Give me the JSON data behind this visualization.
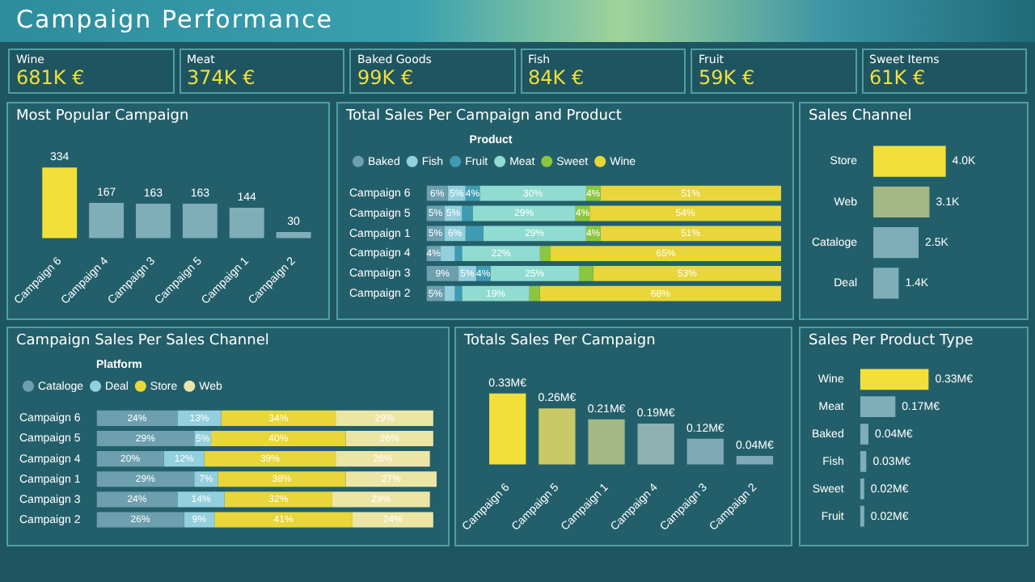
{
  "chart_data": [
    {
      "type": "other",
      "title": "Campaign Performance",
      "annotations": [
        "Wine",
        "681K €",
        "Meat",
        "374K €",
        "Baked Goods",
        "99K €",
        "Fish",
        "84K €",
        "Fruit",
        "59K €",
        "Sweet Items",
        "61K €"
      ]
    },
    {
      "type": "bar",
      "title": "Most Popular Campaign",
      "categories": [
        "Campaign 6",
        "Campaign 4",
        "Campaign 3",
        "Campaign 5",
        "Campaign 1",
        "Campaign 2"
      ],
      "values": [
        334,
        167,
        163,
        163,
        144,
        30
      ],
      "colors": [
        "#f2df3a",
        "#7fadb8",
        "#7fadb8",
        "#7fadb8",
        "#7fadb8",
        "#7fadb8"
      ],
      "data_labels": true,
      "tick_labels": "x",
      "grid": false
    },
    {
      "type": "bar",
      "title": "Total Sales Per Campaign and Product",
      "orientation": "horizontal",
      "stacked": true,
      "legend": "top left",
      "legend_title": "Product",
      "categories": [
        "Campaign 6",
        "Campaign 5",
        "Campaign 1",
        "Campaign 4",
        "Campaign 3",
        "Campaign 2"
      ],
      "xlim": [
        0,
        100
      ],
      "tick_labels": "y",
      "grid": false,
      "series": [
        {
          "name": "Baked",
          "color": "#6d9fae",
          "values": [
            6,
            5,
            5,
            4,
            9,
            5
          ],
          "value_labels": [
            "6%",
            "5%",
            "5%",
            "4%",
            "9%",
            "5%"
          ]
        },
        {
          "name": "Fish",
          "color": "#93cfdc",
          "values": [
            5,
            5,
            6,
            4,
            5,
            3
          ],
          "value_labels": [
            "5%",
            "5%",
            "6%",
            null,
            "5%",
            null
          ]
        },
        {
          "name": "Fruit",
          "color": "#3f9bb2",
          "values": [
            4,
            3,
            5,
            2,
            4,
            2
          ],
          "value_labels": [
            "4%",
            null,
            null,
            null,
            "4%",
            null
          ]
        },
        {
          "name": "Meat",
          "color": "#90dcd0",
          "values": [
            30,
            29,
            29,
            22,
            25,
            19
          ],
          "value_labels": [
            "30%",
            "29%",
            "29%",
            "22%",
            "25%",
            "19%"
          ]
        },
        {
          "name": "Sweet",
          "color": "#8cc63f",
          "values": [
            4,
            4,
            4,
            3,
            4,
            3
          ],
          "value_labels": [
            "4%",
            "4%",
            "4%",
            null,
            null,
            null
          ]
        },
        {
          "name": "Wine",
          "color": "#e8d63a",
          "values": [
            51,
            54,
            51,
            65,
            53,
            68
          ],
          "value_labels": [
            "51%",
            "54%",
            "51%",
            "65%",
            "53%",
            "68%"
          ]
        }
      ]
    },
    {
      "type": "bar",
      "title": "Sales Channel",
      "orientation": "horizontal",
      "categories": [
        "Store",
        "Web",
        "Cataloge",
        "Deal"
      ],
      "values": [
        4.0,
        3.1,
        2.5,
        1.4
      ],
      "value_labels": [
        "4.0K",
        "3.1K",
        "2.5K",
        "1.4K"
      ],
      "colors": [
        "#f2df3a",
        "#a3b884",
        "#7fadb8",
        "#7fadb8"
      ],
      "tick_labels": "y",
      "grid": false
    },
    {
      "type": "bar",
      "title": "Campaign Sales Per Sales Channel",
      "orientation": "horizontal",
      "stacked": true,
      "legend": "top left",
      "legend_title": "Platform",
      "categories": [
        "Campaign 6",
        "Campaign 5",
        "Campaign 4",
        "Campaign 1",
        "Campaign 3",
        "Campaign 2"
      ],
      "xlim": [
        0,
        101
      ],
      "tick_labels": "y",
      "grid": false,
      "series": [
        {
          "name": "Cataloge",
          "color": "#6d9fae",
          "values": [
            24,
            29,
            20,
            29,
            24,
            26
          ],
          "value_labels": [
            "24%",
            "29%",
            "20%",
            "29%",
            "24%",
            "26%"
          ]
        },
        {
          "name": "Deal",
          "color": "#93cfdc",
          "values": [
            13,
            5,
            12,
            7,
            14,
            9
          ],
          "value_labels": [
            "13%",
            "5%",
            "12%",
            "7%",
            "14%",
            "9%"
          ]
        },
        {
          "name": "Store",
          "color": "#e8d63a",
          "values": [
            34,
            40,
            39,
            38,
            32,
            41
          ],
          "value_labels": [
            "34%",
            "40%",
            "39%",
            "38%",
            "32%",
            "41%"
          ]
        },
        {
          "name": "Web",
          "color": "#ece6a6",
          "values": [
            29,
            26,
            28,
            27,
            29,
            24
          ],
          "value_labels": [
            "29%",
            "26%",
            "28%",
            "27%",
            "29%",
            "24%"
          ]
        }
      ]
    },
    {
      "type": "bar",
      "title": "Totals Sales Per Campaign",
      "categories": [
        "Campaign 6",
        "Campaign 5",
        "Campaign 1",
        "Campaign 4",
        "Campaign 3",
        "Campaign 2"
      ],
      "values": [
        0.33,
        0.26,
        0.21,
        0.19,
        0.12,
        0.04
      ],
      "value_labels": [
        "0.33M€",
        "0.26M€",
        "0.21M€",
        "0.19M€",
        "0.12M€",
        "0.04M€"
      ],
      "colors": [
        "#f2df3a",
        "#c9c866",
        "#a3b884",
        "#8fb0b0",
        "#80a9b8",
        "#7fa8b8"
      ],
      "tick_labels": "x",
      "grid": false
    },
    {
      "type": "bar",
      "title": "Sales Per Product Type",
      "orientation": "horizontal",
      "categories": [
        "Wine",
        "Meat",
        "Baked",
        "Fish",
        "Sweet",
        "Fruit"
      ],
      "values": [
        0.33,
        0.17,
        0.04,
        0.03,
        0.02,
        0.02
      ],
      "value_labels": [
        "0.33M€",
        "0.17M€",
        "0.04M€",
        "0.03M€",
        "0.02M€",
        "0.02M€"
      ],
      "colors": [
        "#f2df3a",
        "#7fadb8",
        "#7fadb8",
        "#7fadb8",
        "#7fadb8",
        "#7fadb8"
      ],
      "tick_labels": "y",
      "grid": false
    }
  ]
}
